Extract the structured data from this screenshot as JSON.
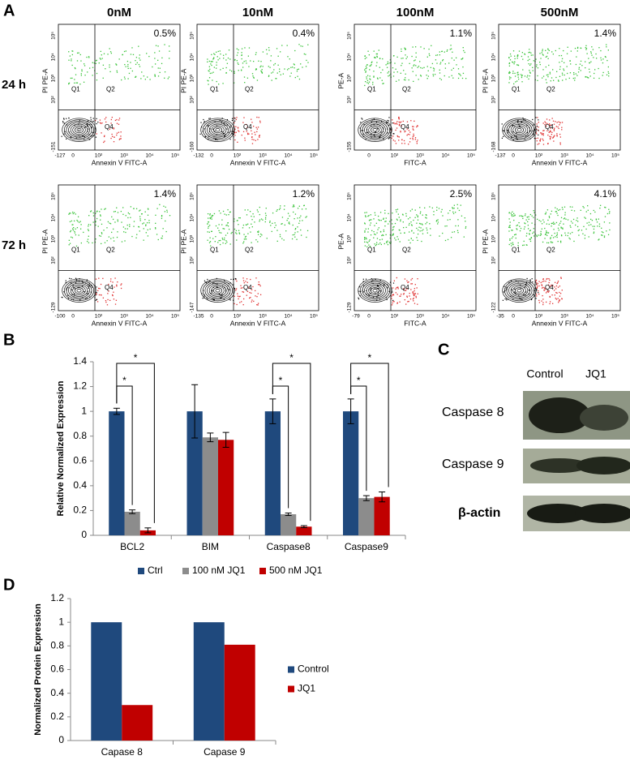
{
  "panel_labels": [
    "A",
    "B",
    "C",
    "D"
  ],
  "flow": {
    "concentrations": [
      "0nM",
      "10nM",
      "100nM",
      "500nM"
    ],
    "times": [
      "24 h",
      "72 h"
    ],
    "quadrants": [
      "Q1",
      "Q2",
      "Q4"
    ],
    "y_ticks": [
      "10²",
      "10³",
      "10⁴",
      "10⁵"
    ],
    "x_ticks": [
      "0",
      "10²",
      "10³",
      "10⁴",
      "10⁵"
    ],
    "plots": [
      [
        {
          "percent": "0.5%",
          "x_label": "Annexin V FITC-A",
          "y_label": "PI PE-A",
          "x_min": "-127",
          "y_min": "-151"
        },
        {
          "percent": "0.4%",
          "x_label": "Annexin V FITC-A",
          "y_label": "PI PE-A",
          "x_min": "-132",
          "y_min": "-160"
        },
        {
          "percent": "1.1%",
          "x_label": "FITC-A",
          "y_label": "PE-A",
          "y_min": "-155"
        },
        {
          "percent": "1.4%",
          "x_label": "Annexin V FITC-A",
          "y_label": "PI PE-A",
          "x_min": "-137",
          "y_min": "-168"
        }
      ],
      [
        {
          "percent": "1.4%",
          "x_label": "Annexin V FITC-A",
          "y_label": "PI PE-A",
          "x_min": "-100",
          "y_min": "-129"
        },
        {
          "percent": "1.2%",
          "x_label": "Annexin V FITC-A",
          "y_label": "PI PE-A",
          "x_min": "-135",
          "y_min": "-147"
        },
        {
          "percent": "2.5%",
          "x_label": "FITC-A",
          "y_label": "PE-A",
          "x_min": "-79",
          "y_min": "-129"
        },
        {
          "percent": "4.1%",
          "x_label": "Annexin V FITC-A",
          "y_label": "PI PE-A",
          "x_min": "-35",
          "y_min": "-122"
        }
      ]
    ]
  },
  "blot": {
    "columns": [
      "Control",
      "JQ1"
    ],
    "rows": [
      "Caspase 8",
      "Caspase 9",
      "β-actin"
    ]
  },
  "chart_data": [
    {
      "type": "bar",
      "y_label": "Relative Normalized Expression",
      "categories": [
        "BCL2",
        "BIM",
        "Caspase8",
        "Caspase9"
      ],
      "series": [
        {
          "name": "Ctrl",
          "color": "#1f497d",
          "values": [
            1,
            1,
            1,
            1
          ],
          "errors": [
            0.025,
            0.215,
            0.1,
            0.1
          ]
        },
        {
          "name": "100 nM JQ1",
          "color": "#8c8c8c",
          "values": [
            0.19,
            0.79,
            0.17,
            0.3
          ],
          "errors": [
            0.015,
            0.035,
            0.01,
            0.02
          ]
        },
        {
          "name": "500 nM JQ1",
          "color": "#c00000",
          "values": [
            0.04,
            0.77,
            0.07,
            0.31
          ],
          "errors": [
            0.02,
            0.06,
            0.008,
            0.04
          ]
        }
      ],
      "significance": [
        {
          "category": "BCL2",
          "from": "Ctrl",
          "to": "100 nM JQ1",
          "label": "*"
        },
        {
          "category": "BCL2",
          "from": "Ctrl",
          "to": "500 nM JQ1",
          "label": "*"
        },
        {
          "category": "Caspase8",
          "from": "Ctrl",
          "to": "100 nM JQ1",
          "label": "*"
        },
        {
          "category": "Caspase8",
          "from": "Ctrl",
          "to": "500 nM JQ1",
          "label": "*"
        },
        {
          "category": "Caspase9",
          "from": "Ctrl",
          "to": "100 nM JQ1",
          "label": "*"
        },
        {
          "category": "Caspase9",
          "from": "Ctrl",
          "to": "500 nM JQ1",
          "label": "*"
        }
      ],
      "ylim": [
        0,
        1.4
      ],
      "yticks": [
        0,
        0.2,
        0.4,
        0.6,
        0.8,
        1,
        1.2,
        1.4
      ],
      "grid": false,
      "legend": "bottom"
    },
    {
      "type": "bar",
      "y_label": "Normalized Protein Expression",
      "categories": [
        "Capase 8",
        "Capase 9"
      ],
      "series": [
        {
          "name": "Control",
          "color": "#1f497d",
          "values": [
            1,
            1
          ]
        },
        {
          "name": "JQ1",
          "color": "#c00000",
          "values": [
            0.3,
            0.81
          ]
        }
      ],
      "ylim": [
        0,
        1.2
      ],
      "yticks": [
        0,
        0.2,
        0.4,
        0.6,
        0.8,
        1,
        1.2
      ],
      "grid": false,
      "legend": "right"
    }
  ]
}
